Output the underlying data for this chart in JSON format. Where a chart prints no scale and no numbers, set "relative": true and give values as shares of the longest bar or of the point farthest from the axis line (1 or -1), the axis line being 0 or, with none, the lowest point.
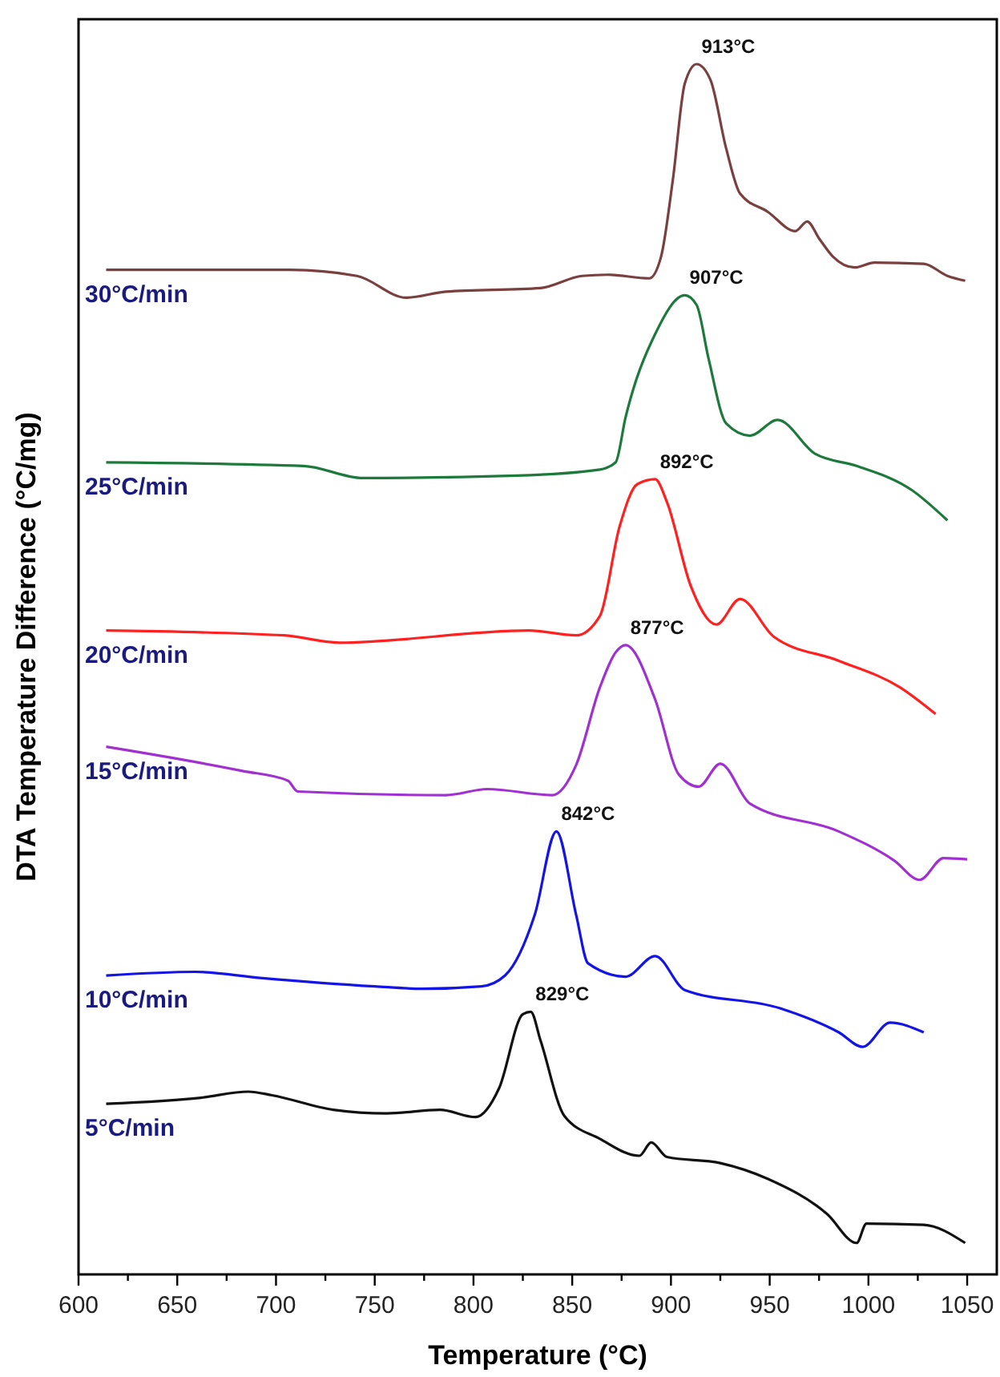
{
  "chart_data": {
    "type": "line",
    "relative": true,
    "xlabel": "Temperature  (°C)",
    "ylabel": "DTA Temperature Difference (°C/mg)",
    "xlim": [
      600,
      1065
    ],
    "xticks": [
      600,
      {
        "value": 625,
        "label": null
      },
      650,
      {
        "value": 675,
        "label": null
      },
      700,
      {
        "value": 725,
        "label": null
      },
      750,
      {
        "value": 775,
        "label": null
      },
      800,
      {
        "value": 825,
        "label": null
      },
      850,
      {
        "value": 875,
        "label": null
      },
      900,
      {
        "value": 925,
        "label": null
      },
      950,
      {
        "value": 975,
        "label": null
      },
      1000,
      {
        "value": 1025,
        "label": null
      },
      1050
    ],
    "grid": false,
    "marker": "none",
    "line_style": "solid",
    "series": [
      {
        "name": "30°C/min",
        "color": "#7a3f3f",
        "x": [
          614,
          707,
          741,
          766,
          786,
          834,
          855,
          868,
          889,
          895,
          901,
          907,
          913,
          920,
          928,
          935,
          949,
          963,
          969,
          975,
          982,
          993,
          1003,
          1028,
          1040,
          1049
        ],
        "values": [
          0.83,
          0.83,
          0.825,
          0.807,
          0.812,
          0.815,
          0.825,
          0.826,
          0.823,
          0.841,
          0.905,
          0.984,
          1.0,
          0.987,
          0.93,
          0.893,
          0.878,
          0.862,
          0.87,
          0.856,
          0.841,
          0.832,
          0.836,
          0.835,
          0.825,
          0.821
        ]
      },
      {
        "name": "25°C/min",
        "color": "#1e7a3c",
        "x": [
          614,
          714,
          744,
          822,
          864,
          872,
          877,
          892,
          907,
          913,
          919,
          928,
          940,
          954,
          973,
          994,
          1022,
          1040
        ],
        "values": [
          0.671,
          0.668,
          0.658,
          0.66,
          0.665,
          0.671,
          0.708,
          0.777,
          0.809,
          0.801,
          0.757,
          0.703,
          0.693,
          0.706,
          0.678,
          0.668,
          0.648,
          0.623
        ]
      },
      {
        "name": "20°C/min",
        "color": "#ff2020",
        "x": [
          614,
          704,
          732,
          828,
          852,
          864,
          874,
          883,
          892,
          898,
          910,
          923,
          935,
          952,
          985,
          1016,
          1034
        ],
        "values": [
          0.532,
          0.528,
          0.522,
          0.532,
          0.528,
          0.544,
          0.618,
          0.653,
          0.657,
          0.638,
          0.569,
          0.537,
          0.558,
          0.527,
          0.507,
          0.485,
          0.463
        ]
      },
      {
        "name": "15°C/min",
        "color": "#a030d0",
        "x": [
          614,
          683,
          706,
          711,
          786,
          807,
          840,
          852,
          864,
          872,
          877,
          892,
          904,
          914,
          925,
          940,
          985,
          1013,
          1026,
          1038,
          1050
        ],
        "values": [
          0.436,
          0.416,
          0.408,
          0.399,
          0.396,
          0.401,
          0.396,
          0.421,
          0.485,
          0.514,
          0.52,
          0.475,
          0.413,
          0.403,
          0.422,
          0.389,
          0.366,
          0.342,
          0.326,
          0.344,
          0.343
        ]
      },
      {
        "name": "10°C/min",
        "color": "#1414e6",
        "x": [
          614,
          659,
          692,
          750,
          774,
          804,
          816,
          831,
          842,
          852,
          858,
          877,
          892,
          907,
          955,
          985,
          997,
          1011,
          1028
        ],
        "values": [
          0.247,
          0.25,
          0.245,
          0.238,
          0.236,
          0.238,
          0.247,
          0.297,
          0.366,
          0.297,
          0.257,
          0.246,
          0.263,
          0.235,
          0.22,
          0.2,
          0.188,
          0.208,
          0.2
        ]
      },
      {
        "name": "5°C/min",
        "color": "#111111",
        "x": [
          614,
          662,
          686,
          698,
          729,
          756,
          783,
          801,
          813,
          825,
          829,
          834,
          846,
          864,
          884,
          890,
          898,
          925,
          949,
          979,
          994,
          999,
          1028,
          1049
        ],
        "values": [
          0.141,
          0.146,
          0.151,
          0.148,
          0.136,
          0.133,
          0.136,
          0.13,
          0.154,
          0.215,
          0.217,
          0.193,
          0.131,
          0.112,
          0.098,
          0.109,
          0.097,
          0.092,
          0.079,
          0.05,
          0.026,
          0.042,
          0.041,
          0.026
        ]
      }
    ],
    "annotations": [
      {
        "text": "913°C",
        "x": 913,
        "y": 1.0
      },
      {
        "text": "907°C",
        "x": 907,
        "y": 0.809
      },
      {
        "text": "892°C",
        "x": 892,
        "y": 0.657
      },
      {
        "text": "877°C",
        "x": 877,
        "y": 0.52
      },
      {
        "text": "842°C",
        "x": 842,
        "y": 0.366
      },
      {
        "text": "829°C",
        "x": 829,
        "y": 0.217
      }
    ]
  }
}
